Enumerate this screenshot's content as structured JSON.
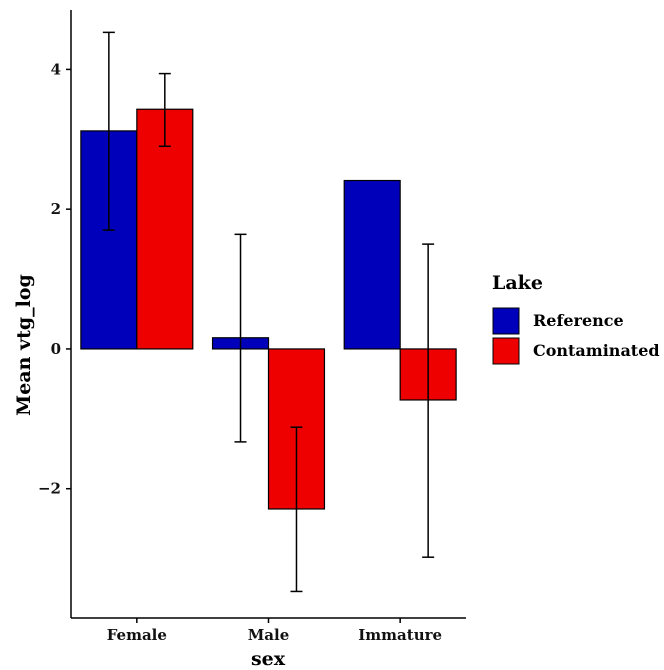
{
  "chart_data": {
    "type": "bar",
    "title": "",
    "xlabel": "sex",
    "ylabel": "Mean vtg_log",
    "categories": [
      "Female",
      "Male",
      "Immature"
    ],
    "ylim": [
      -3.85,
      4.85
    ],
    "yticks": [
      -2,
      0,
      2,
      4
    ],
    "ytick_labels": [
      "−2",
      "0",
      "2",
      "4"
    ],
    "grid": false,
    "legend": {
      "title": "Lake",
      "position": "right"
    },
    "series": [
      {
        "name": "Reference",
        "color": "#0000bb",
        "values": [
          3.12,
          0.16,
          2.41
        ],
        "err_low": [
          1.7,
          -1.33,
          null
        ],
        "err_high": [
          4.53,
          1.64,
          null
        ]
      },
      {
        "name": "Contaminated",
        "color": "#ee0000",
        "values": [
          3.43,
          -2.29,
          -0.73
        ],
        "err_low": [
          2.9,
          -3.47,
          -2.98
        ],
        "err_high": [
          3.94,
          -1.12,
          1.5
        ]
      }
    ]
  }
}
